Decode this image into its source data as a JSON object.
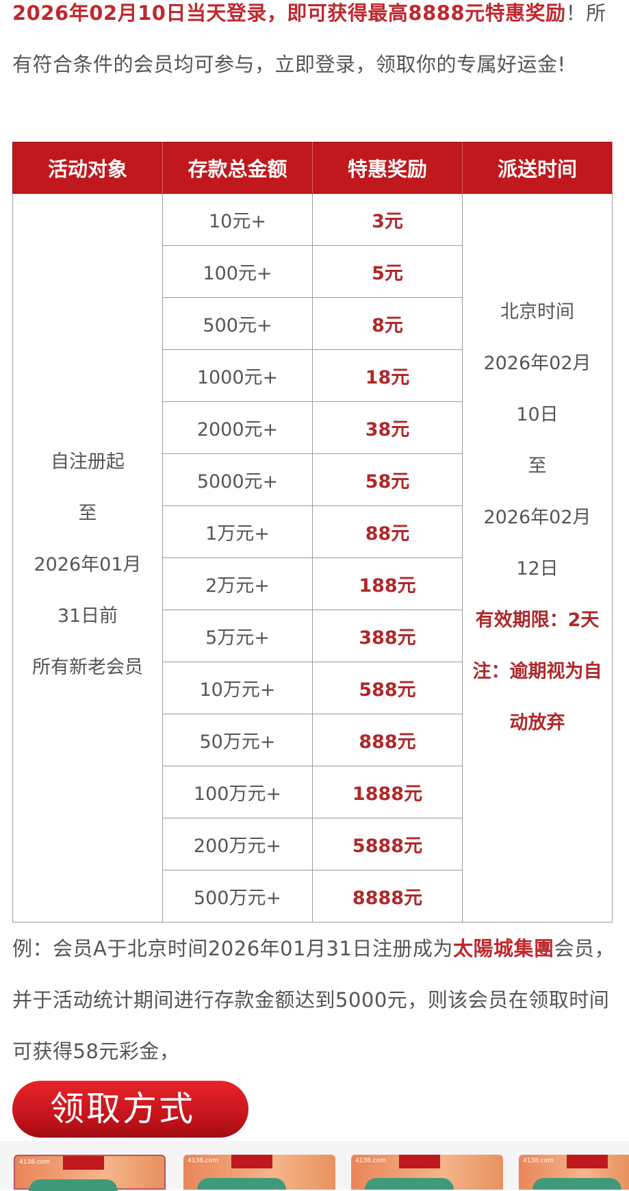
{
  "intro": {
    "highlight": "2026年02月10日当天登录，即可获得最高8888元特惠奖励",
    "rest": "！所有符合条件的会员均可参与，立即登录，领取你的专属好运金!"
  },
  "table": {
    "headers": [
      "活动对象",
      "存款总金额",
      "特惠奖励",
      "派送时间"
    ],
    "target_lines": [
      "自注册起",
      "至",
      "2026年01月",
      "31日前",
      "所有新老会员"
    ],
    "rows": [
      {
        "deposit": "10元+",
        "reward": "3元"
      },
      {
        "deposit": "100元+",
        "reward": "5元"
      },
      {
        "deposit": "500元+",
        "reward": "8元"
      },
      {
        "deposit": "1000元+",
        "reward": "18元"
      },
      {
        "deposit": "2000元+",
        "reward": "38元"
      },
      {
        "deposit": "5000元+",
        "reward": "58元"
      },
      {
        "deposit": "1万元+",
        "reward": "88元"
      },
      {
        "deposit": "2万元+",
        "reward": "188元"
      },
      {
        "deposit": "5万元+",
        "reward": "388元"
      },
      {
        "deposit": "10万元+",
        "reward": "588元"
      },
      {
        "deposit": "50万元+",
        "reward": "888元"
      },
      {
        "deposit": "100万元+",
        "reward": "1888元"
      },
      {
        "deposit": "200万元+",
        "reward": "5888元"
      },
      {
        "deposit": "500万元+",
        "reward": "8888元"
      }
    ],
    "time_lines": [
      "北京时间",
      "2026年02月",
      "10日",
      "至",
      "2026年02月",
      "12日"
    ],
    "time_notes": [
      "有效期限：2天",
      "注：逾期视为自动放弃"
    ]
  },
  "example": {
    "part1": "例：会员A于北京时间2026年01月31日注册成为",
    "brand": "太陽城集團",
    "part2": "会员，并于活动统计期间进行存款金额达到5000元，则该会员在领取时间可获得58元彩金，"
  },
  "claim_button": "领取方式",
  "thumbnails": [
    {
      "logo": "4138.com"
    },
    {
      "logo": "4138.com"
    },
    {
      "logo": "4138.com"
    },
    {
      "logo": "4138.com"
    }
  ],
  "colors": {
    "accent": "#c0181d",
    "text": "#555555"
  }
}
